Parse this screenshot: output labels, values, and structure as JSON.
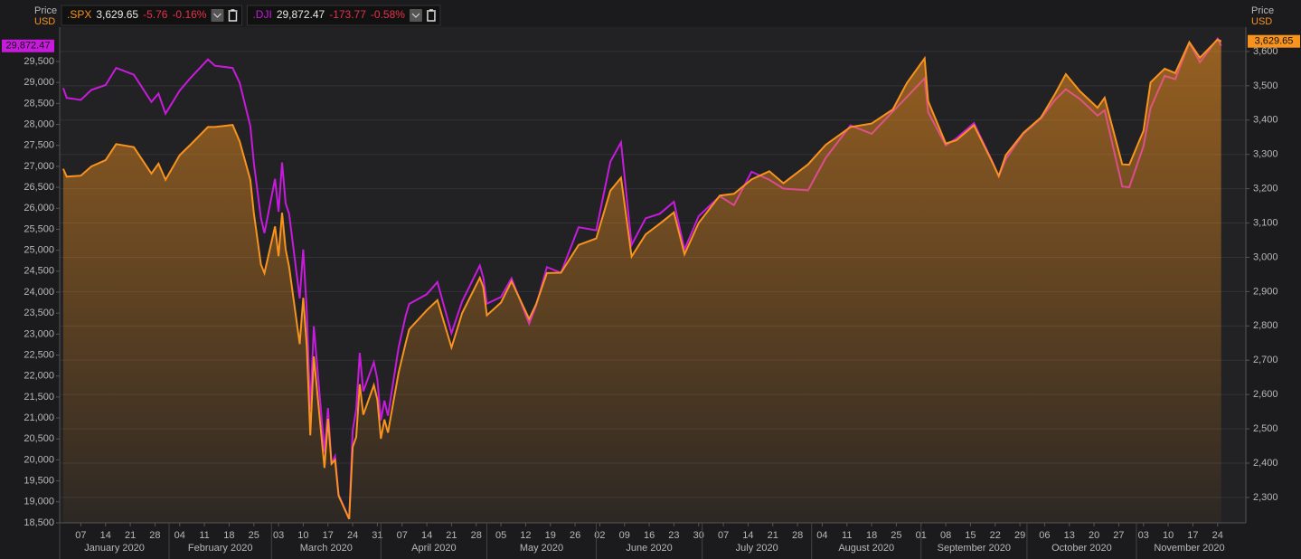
{
  "chart_data": {
    "type": "line",
    "left_axis_label": "Price",
    "left_axis_unit": "USD",
    "right_axis_label": "Price",
    "right_axis_unit": "USD",
    "x": [
      "2020-01-02",
      "2020-01-03",
      "2020-01-07",
      "2020-01-10",
      "2020-01-14",
      "2020-01-17",
      "2020-01-22",
      "2020-01-27",
      "2020-01-29",
      "2020-01-31",
      "2020-02-04",
      "2020-02-07",
      "2020-02-12",
      "2020-02-14",
      "2020-02-19",
      "2020-02-21",
      "2020-02-24",
      "2020-02-25",
      "2020-02-27",
      "2020-02-28",
      "2020-03-02",
      "2020-03-03",
      "2020-03-04",
      "2020-03-05",
      "2020-03-06",
      "2020-03-09",
      "2020-03-10",
      "2020-03-11",
      "2020-03-12",
      "2020-03-13",
      "2020-03-16",
      "2020-03-17",
      "2020-03-18",
      "2020-03-19",
      "2020-03-20",
      "2020-03-23",
      "2020-03-24",
      "2020-03-25",
      "2020-03-26",
      "2020-03-27",
      "2020-03-30",
      "2020-03-31",
      "2020-04-01",
      "2020-04-02",
      "2020-04-03",
      "2020-04-06",
      "2020-04-08",
      "2020-04-09",
      "2020-04-14",
      "2020-04-17",
      "2020-04-21",
      "2020-04-24",
      "2020-04-29",
      "2020-04-30",
      "2020-05-01",
      "2020-05-05",
      "2020-05-08",
      "2020-05-13",
      "2020-05-15",
      "2020-05-18",
      "2020-05-22",
      "2020-05-27",
      "2020-06-01",
      "2020-06-05",
      "2020-06-08",
      "2020-06-11",
      "2020-06-15",
      "2020-06-19",
      "2020-06-23",
      "2020-06-26",
      "2020-06-30",
      "2020-07-06",
      "2020-07-10",
      "2020-07-15",
      "2020-07-20",
      "2020-07-24",
      "2020-07-31",
      "2020-08-05",
      "2020-08-12",
      "2020-08-18",
      "2020-08-24",
      "2020-08-28",
      "2020-09-02",
      "2020-09-03",
      "2020-09-08",
      "2020-09-11",
      "2020-09-16",
      "2020-09-21",
      "2020-09-23",
      "2020-09-25",
      "2020-09-30",
      "2020-10-05",
      "2020-10-09",
      "2020-10-12",
      "2020-10-16",
      "2020-10-21",
      "2020-10-23",
      "2020-10-28",
      "2020-10-30",
      "2020-11-03",
      "2020-11-05",
      "2020-11-09",
      "2020-11-12",
      "2020-11-16",
      "2020-11-19",
      "2020-11-24",
      "2020-11-25"
    ],
    "series": [
      {
        "name": ".SPX",
        "color": "#f7931e",
        "axis": "y2",
        "area": true,
        "last_label": "3,629.65",
        "change_label": "-5.76",
        "change_pct_label": "-0.16%",
        "values": [
          3258,
          3235,
          3238,
          3265,
          3283,
          3330,
          3321,
          3244,
          3273,
          3226,
          3298,
          3328,
          3380,
          3380,
          3386,
          3338,
          3226,
          3128,
          2979,
          2954,
          3090,
          3003,
          3130,
          3024,
          2972,
          2747,
          2882,
          2741,
          2481,
          2711,
          2386,
          2529,
          2398,
          2409,
          2305,
          2237,
          2447,
          2476,
          2630,
          2541,
          2627,
          2585,
          2471,
          2527,
          2489,
          2664,
          2750,
          2790,
          2846,
          2875,
          2737,
          2837,
          2940,
          2912,
          2831,
          2868,
          2930,
          2820,
          2864,
          2954,
          2955,
          3036,
          3055,
          3194,
          3232,
          3002,
          3067,
          3098,
          3131,
          3009,
          3100,
          3180,
          3185,
          3227,
          3251,
          3216,
          3271,
          3328,
          3380,
          3390,
          3431,
          3508,
          3580,
          3455,
          3332,
          3341,
          3385,
          3281,
          3237,
          3298,
          3363,
          3408,
          3477,
          3534,
          3484,
          3436,
          3465,
          3271,
          3270,
          3369,
          3510,
          3550,
          3537,
          3627,
          3582,
          3635,
          3629.65
        ]
      },
      {
        "name": ".DJI",
        "color": "#c71bdc",
        "axis": "y",
        "last_label": "29,872.47",
        "change_label": "-173.77",
        "change_pct_label": "-0.58%",
        "values": [
          28868,
          28634,
          28584,
          28824,
          28940,
          29348,
          29186,
          28536,
          28734,
          28256,
          28808,
          29103,
          29551,
          29398,
          29348,
          28992,
          27961,
          27081,
          25766,
          25409,
          26703,
          25917,
          27091,
          26121,
          25865,
          23851,
          25018,
          23553,
          21200,
          23186,
          20189,
          21237,
          19899,
          20087,
          19174,
          18592,
          20705,
          21201,
          22552,
          21637,
          22327,
          21917,
          20944,
          21413,
          21053,
          22680,
          23434,
          23719,
          23950,
          24242,
          23019,
          23775,
          24634,
          24346,
          23724,
          23883,
          24331,
          23248,
          23685,
          24597,
          24465,
          25548,
          25475,
          27111,
          27572,
          25128,
          25763,
          25871,
          26156,
          25016,
          25813,
          26288,
          26075,
          26870,
          26681,
          26470,
          26428,
          27201,
          27977,
          27778,
          28308,
          28654,
          29100,
          28292,
          27500,
          27666,
          28032,
          27147,
          26763,
          27174,
          27782,
          28148,
          28587,
          28838,
          28606,
          28211,
          28336,
          26520,
          26502,
          27481,
          28390,
          29158,
          29080,
          29950,
          29483,
          30046,
          29872.47
        ]
      }
    ],
    "xlim": [
      "2020-01-01",
      "2020-12-02"
    ],
    "xticks": [
      {
        "value": "2020-01-07",
        "label": "07"
      },
      {
        "value": "2020-01-14",
        "label": "14"
      },
      {
        "value": "2020-01-21",
        "label": "21"
      },
      {
        "value": "2020-01-28",
        "label": "28"
      },
      {
        "value": "2020-02-04",
        "label": "04"
      },
      {
        "value": "2020-02-11",
        "label": "11"
      },
      {
        "value": "2020-02-18",
        "label": "18"
      },
      {
        "value": "2020-02-25",
        "label": "25"
      },
      {
        "value": "2020-03-03",
        "label": "03"
      },
      {
        "value": "2020-03-10",
        "label": "10"
      },
      {
        "value": "2020-03-17",
        "label": "17"
      },
      {
        "value": "2020-03-24",
        "label": "24"
      },
      {
        "value": "2020-03-31",
        "label": "31"
      },
      {
        "value": "2020-04-07",
        "label": "07"
      },
      {
        "value": "2020-04-14",
        "label": "14"
      },
      {
        "value": "2020-04-21",
        "label": "21"
      },
      {
        "value": "2020-04-28",
        "label": "28"
      },
      {
        "value": "2020-05-05",
        "label": "05"
      },
      {
        "value": "2020-05-12",
        "label": "12"
      },
      {
        "value": "2020-05-19",
        "label": "19"
      },
      {
        "value": "2020-05-26",
        "label": "26"
      },
      {
        "value": "2020-06-02",
        "label": "02"
      },
      {
        "value": "2020-06-09",
        "label": "09"
      },
      {
        "value": "2020-06-16",
        "label": "16"
      },
      {
        "value": "2020-06-23",
        "label": "23"
      },
      {
        "value": "2020-06-30",
        "label": "30"
      },
      {
        "value": "2020-07-07",
        "label": "07"
      },
      {
        "value": "2020-07-14",
        "label": "14"
      },
      {
        "value": "2020-07-21",
        "label": "21"
      },
      {
        "value": "2020-07-28",
        "label": "28"
      },
      {
        "value": "2020-08-04",
        "label": "04"
      },
      {
        "value": "2020-08-11",
        "label": "11"
      },
      {
        "value": "2020-08-18",
        "label": "18"
      },
      {
        "value": "2020-08-25",
        "label": "25"
      },
      {
        "value": "2020-09-01",
        "label": "01"
      },
      {
        "value": "2020-09-08",
        "label": "08"
      },
      {
        "value": "2020-09-15",
        "label": "15"
      },
      {
        "value": "2020-09-22",
        "label": "22"
      },
      {
        "value": "2020-09-29",
        "label": "29"
      },
      {
        "value": "2020-10-06",
        "label": "06"
      },
      {
        "value": "2020-10-13",
        "label": "13"
      },
      {
        "value": "2020-10-20",
        "label": "20"
      },
      {
        "value": "2020-10-27",
        "label": "27"
      },
      {
        "value": "2020-11-03",
        "label": "03"
      },
      {
        "value": "2020-11-10",
        "label": "10"
      },
      {
        "value": "2020-11-17",
        "label": "17"
      },
      {
        "value": "2020-11-24",
        "label": "24"
      }
    ],
    "x_month_labels": [
      "January 2020",
      "February 2020",
      "March 2020",
      "April 2020",
      "May 2020",
      "June 2020",
      "July 2020",
      "August 2020",
      "September 2020",
      "October 2020",
      "November 2020"
    ],
    "ylim": [
      18500,
      30320
    ],
    "yticks": [
      {
        "value": 18500,
        "label": "18,500"
      },
      {
        "value": 19000,
        "label": "19,000"
      },
      {
        "value": 19500,
        "label": "19,500"
      },
      {
        "value": 20000,
        "label": "20,000"
      },
      {
        "value": 20500,
        "label": "20,500"
      },
      {
        "value": 21000,
        "label": "21,000"
      },
      {
        "value": 21500,
        "label": "21,500"
      },
      {
        "value": 22000,
        "label": "22,000"
      },
      {
        "value": 22500,
        "label": "22,500"
      },
      {
        "value": 23000,
        "label": "23,000"
      },
      {
        "value": 23500,
        "label": "23,500"
      },
      {
        "value": 24000,
        "label": "24,000"
      },
      {
        "value": 24500,
        "label": "24,500"
      },
      {
        "value": 25000,
        "label": "25,000"
      },
      {
        "value": 25500,
        "label": "25,500"
      },
      {
        "value": 26000,
        "label": "26,000"
      },
      {
        "value": 26500,
        "label": "26,500"
      },
      {
        "value": 27000,
        "label": "27,000"
      },
      {
        "value": 27500,
        "label": "27,500"
      },
      {
        "value": 28000,
        "label": "28,000"
      },
      {
        "value": 28500,
        "label": "28,500"
      },
      {
        "value": 29000,
        "label": "29,000"
      },
      {
        "value": 29500,
        "label": "29,500"
      }
    ],
    "y2lim": [
      2226,
      3671
    ],
    "y2ticks": [
      {
        "value": 2300,
        "label": "2,300"
      },
      {
        "value": 2400,
        "label": "2,400"
      },
      {
        "value": 2500,
        "label": "2,500"
      },
      {
        "value": 2600,
        "label": "2,600"
      },
      {
        "value": 2700,
        "label": "2,700"
      },
      {
        "value": 2800,
        "label": "2,800"
      },
      {
        "value": 2900,
        "label": "2,900"
      },
      {
        "value": 3000,
        "label": "3,000"
      },
      {
        "value": 3100,
        "label": "3,100"
      },
      {
        "value": 3200,
        "label": "3,200"
      },
      {
        "value": 3300,
        "label": "3,300"
      },
      {
        "value": 3400,
        "label": "3,400"
      },
      {
        "value": 3500,
        "label": "3,500"
      },
      {
        "value": 3600,
        "label": "3,600"
      }
    ],
    "grid": true
  }
}
